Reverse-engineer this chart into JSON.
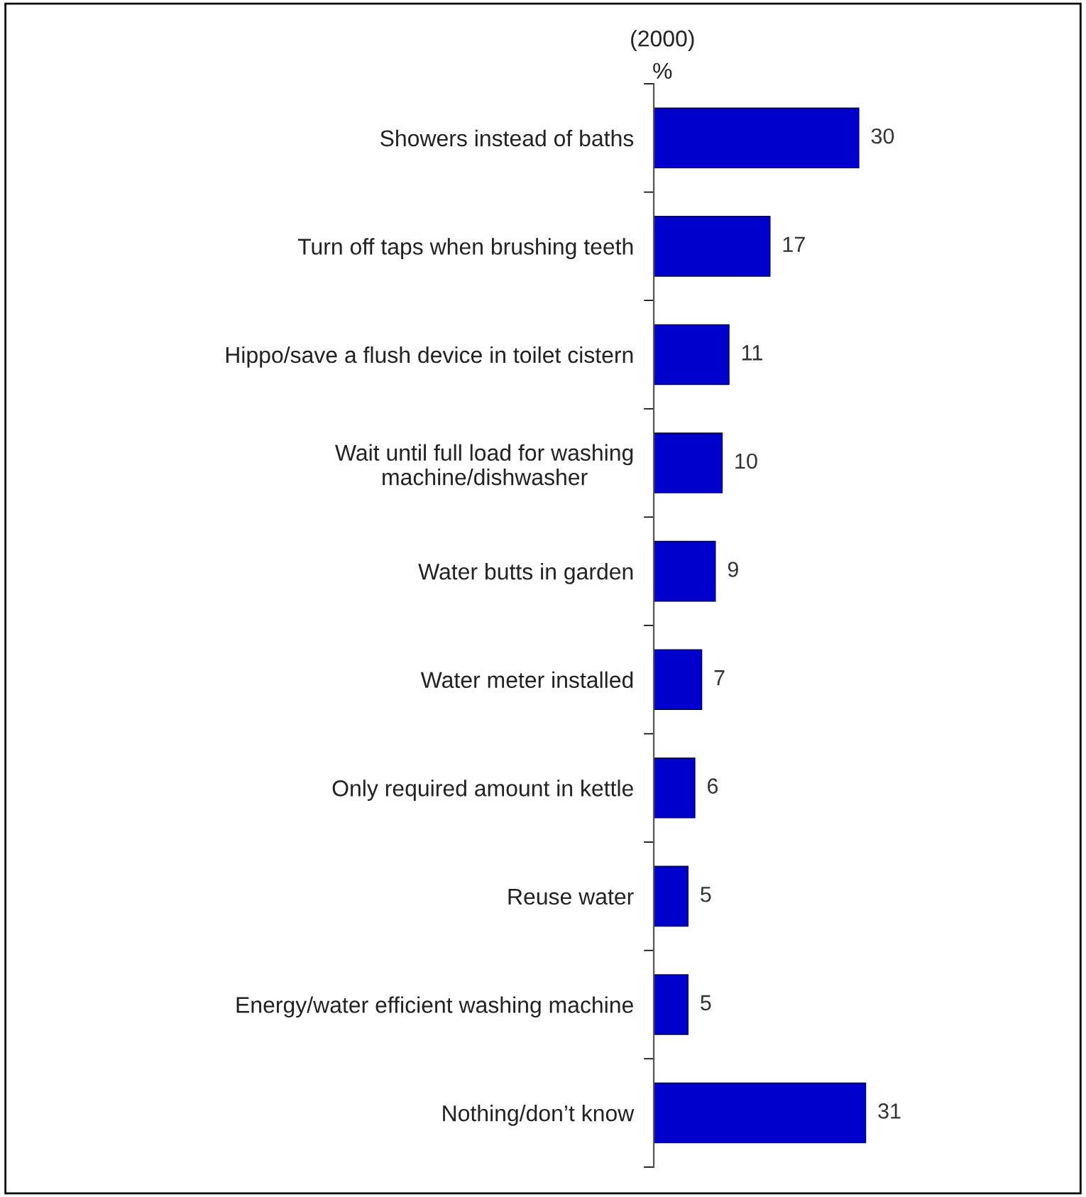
{
  "chart_data": {
    "type": "bar",
    "orientation": "horizontal",
    "title": "(2000)",
    "subtitle": "%",
    "categories": [
      "Showers instead of baths",
      "Turn off taps when brushing teeth",
      "Hippo/save a flush device in toilet cistern",
      "Wait until full load for washing\nmachine/dishwasher",
      "Water butts in garden",
      "Water meter installed",
      "Only required amount in kettle",
      "Reuse water",
      "Energy/water efficient washing machine",
      "Nothing/don’t know"
    ],
    "values": [
      30,
      17,
      11,
      10,
      9,
      7,
      6,
      5,
      5,
      31
    ],
    "color": "#0000cc",
    "data_labels": true,
    "grid": false,
    "legend": false
  }
}
